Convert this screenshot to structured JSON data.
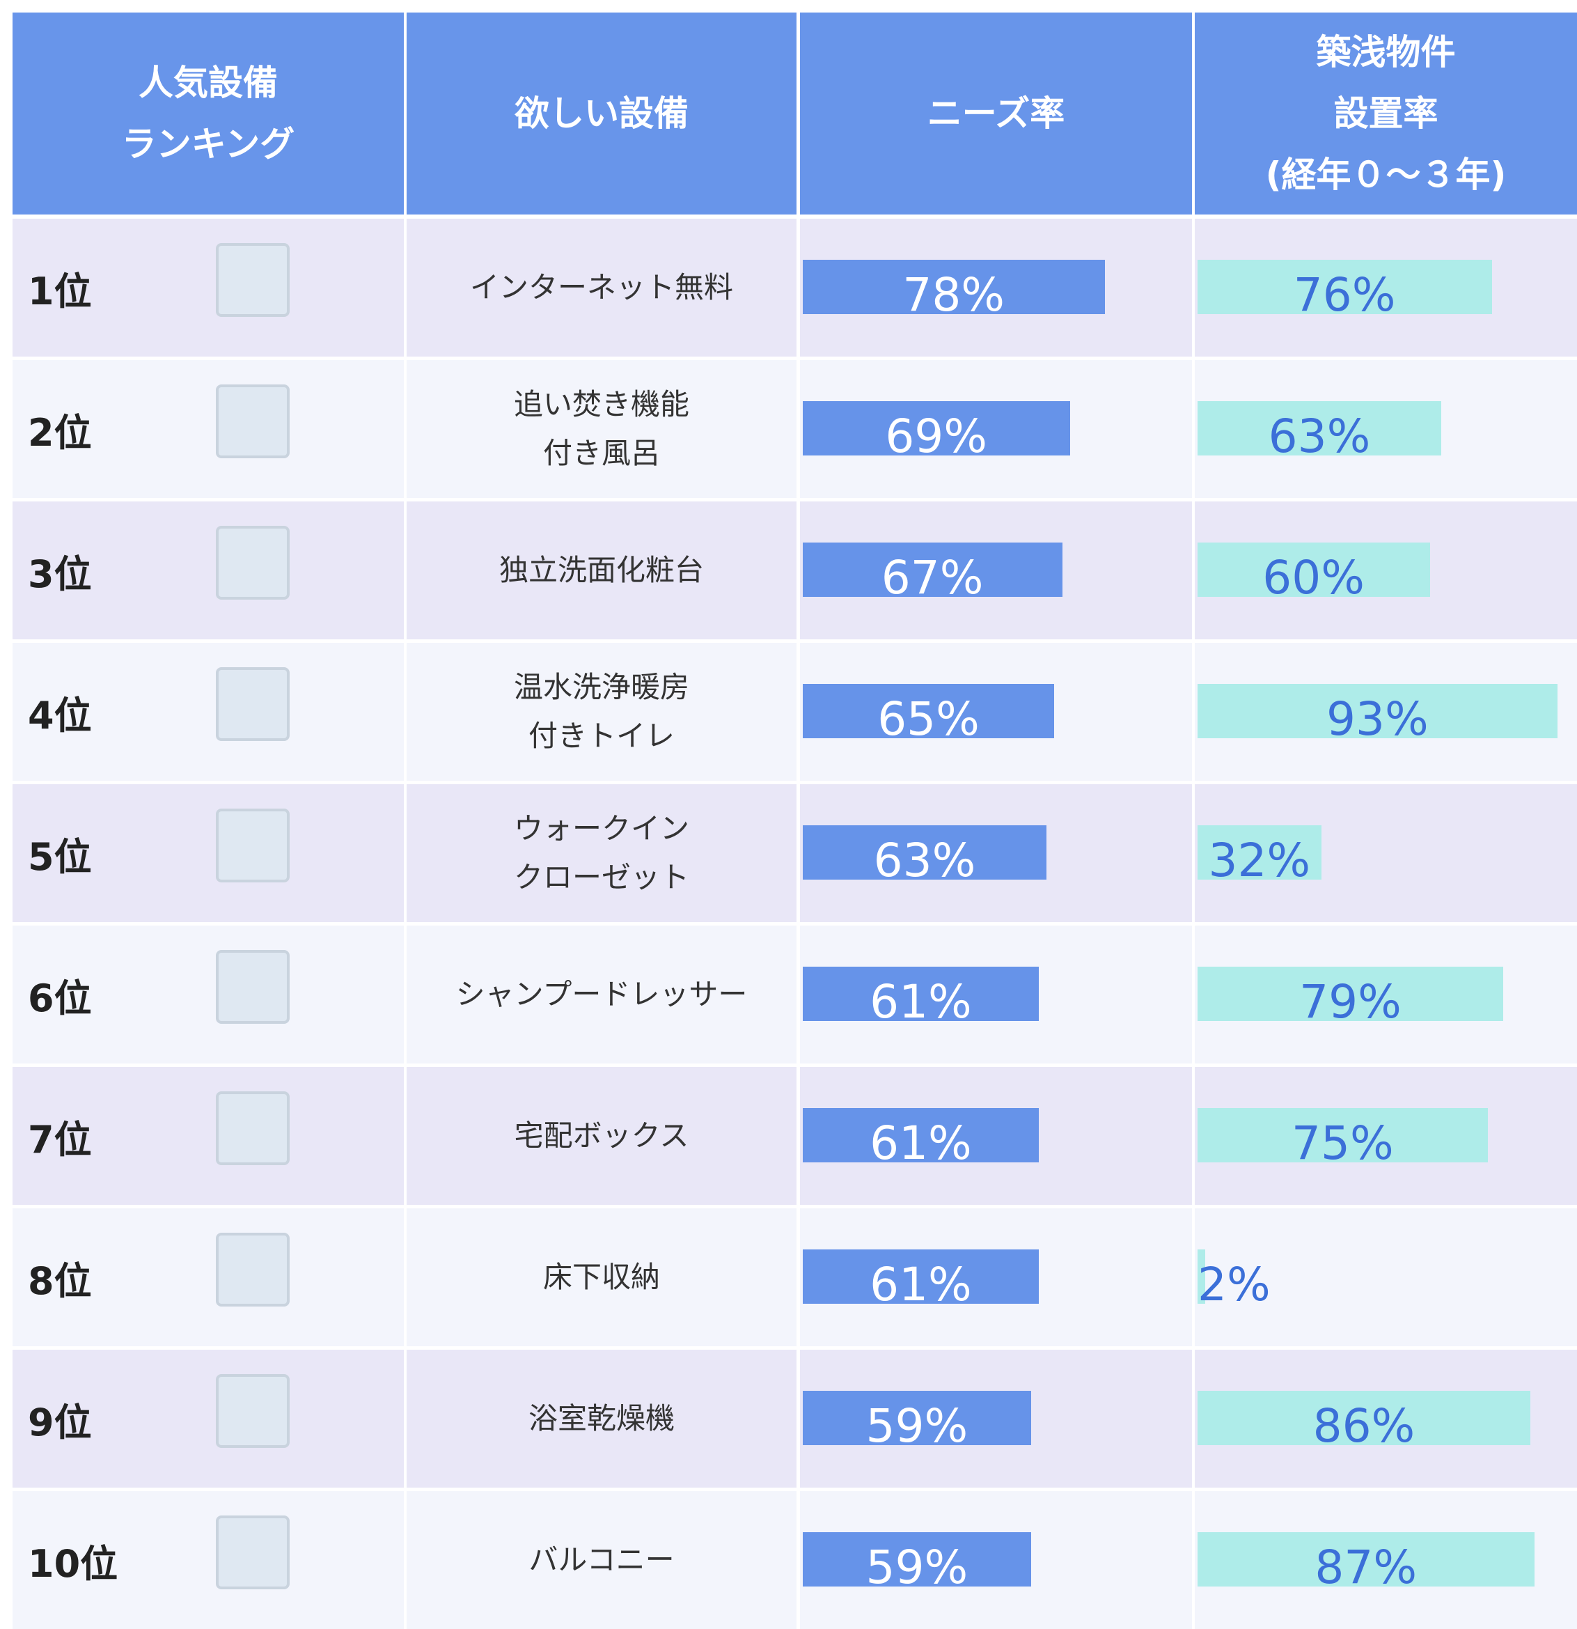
{
  "table": {
    "header": [
      [
        "人気設備",
        "ランキング"
      ],
      [
        "欲しい設備"
      ],
      [
        "ニーズ率"
      ],
      [
        "築浅物件",
        "設置率",
        "(経年０～３年)"
      ]
    ],
    "rows": [
      {
        "rank": "1位",
        "item": [
          "インターネット無料"
        ],
        "need": {
          "value": 78,
          "label": "78%"
        },
        "installed": {
          "value": 76,
          "label": "76%"
        }
      },
      {
        "rank": "2位",
        "item": [
          "追い焚き機能",
          "付き風呂"
        ],
        "need": {
          "value": 69,
          "label": "69%"
        },
        "installed": {
          "value": 63,
          "label": "63%"
        }
      },
      {
        "rank": "3位",
        "item": [
          "独立洗面化粧台"
        ],
        "need": {
          "value": 67,
          "label": "67%"
        },
        "installed": {
          "value": 60,
          "label": "60%"
        }
      },
      {
        "rank": "4位",
        "item": [
          "温水洗浄暖房",
          "付きトイレ"
        ],
        "need": {
          "value": 65,
          "label": "65%"
        },
        "installed": {
          "value": 93,
          "label": "93%"
        }
      },
      {
        "rank": "5位",
        "item": [
          "ウォークイン",
          "クローゼット"
        ],
        "need": {
          "value": 63,
          "label": "63%"
        },
        "installed": {
          "value": 32,
          "label": "32%"
        }
      },
      {
        "rank": "6位",
        "item": [
          "シャンプードレッサー"
        ],
        "need": {
          "value": 61,
          "label": "61%"
        },
        "installed": {
          "value": 79,
          "label": "79%"
        }
      },
      {
        "rank": "7位",
        "item": [
          "宅配ボックス"
        ],
        "need": {
          "value": 61,
          "label": "61%"
        },
        "installed": {
          "value": 75,
          "label": "75%"
        }
      },
      {
        "rank": "8位",
        "item": [
          "床下収納"
        ],
        "need": {
          "value": 61,
          "label": "61%"
        },
        "installed": {
          "value": 2,
          "label": "2%"
        }
      },
      {
        "rank": "9位",
        "item": [
          "浴室乾燥機"
        ],
        "need": {
          "value": 59,
          "label": "59%"
        },
        "installed": {
          "value": 86,
          "label": "86%"
        }
      },
      {
        "rank": "10位",
        "item": [
          "バルコニー"
        ],
        "need": {
          "value": 59,
          "label": "59%"
        },
        "installed": {
          "value": 87,
          "label": "87%"
        }
      }
    ]
  }
}
